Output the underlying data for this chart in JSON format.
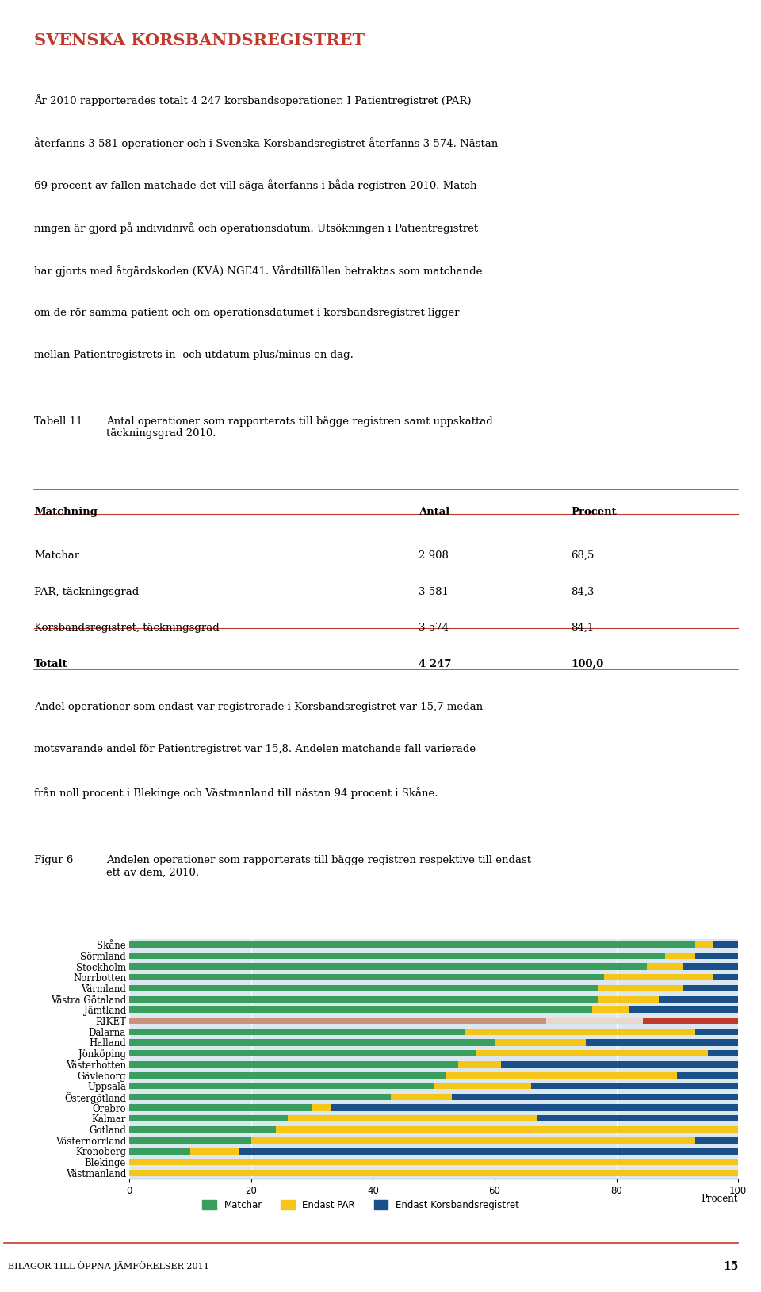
{
  "title": "SVENSKA KORSBANDSREGISTRET",
  "title_color": "#c0392b",
  "body_text": [
    "År 2010 rapporterades totalt 4 247 korsbandsoperationer. I Patientregistret (PAR)",
    "återfanns 3 581 operationer och i Svenska Korsbandsregistret återfanns 3 574. Nästan",
    "69 procent av fallen matchade det vill säga återfanns i båda registren 2010. Match-",
    "ningen är gjord på individnivå och operationsdatum. Utsökningen i Patientregistret",
    "har gjorts med åtgärdskoden (KVÅ) NGE41. Vårdtillfällen betraktas som matchande",
    "om de rör samma patient och om operationsdatumet i korsbandsregistret ligger",
    "mellan Patientregistrets in- och utdatum plus/minus en dag."
  ],
  "tabell_label": "Tabell 11",
  "tabell_title": "Antal operationer som rapporterats till bägge registren samt uppskattad\ntäckningsgrad 2010.",
  "table_headers": [
    "Matchning",
    "Antal",
    "Procent"
  ],
  "table_rows": [
    [
      "Matchar",
      "2 908",
      "68,5"
    ],
    [
      "PAR, täckningsgrad",
      "3 581",
      "84,3"
    ],
    [
      "Korsbandsregistret, täckningsgrad",
      "3 574",
      "84,1"
    ],
    [
      "Totalt",
      "4 247",
      "100,0"
    ]
  ],
  "andel_text": [
    "Andel operationer som endast var registrerade i Korsbandsregistret var 15,7 medan",
    "motsvarande andel för Patientregistret var 15,8. Andelen matchande fall varierade",
    "från noll procent i Blekinge och Västmanland till nästan 94 procent i Skåne."
  ],
  "figur_label": "Figur 6",
  "figur_title": "Andelen operationer som rapporterats till bägge registren respektive till endast\nett av dem, 2010.",
  "categories": [
    "Skåne",
    "Sörmland",
    "Stockholm",
    "Norrbotten",
    "Värmland",
    "Västra Götaland",
    "Jämtland",
    "RIKET",
    "Dalarna",
    "Halland",
    "Jönköping",
    "Västerbotten",
    "Gävleborg",
    "Uppsala",
    "Östergötland",
    "Örebro",
    "Kalmar",
    "Gotland",
    "Västernorrland",
    "Kronoberg",
    "Blekinge",
    "Västmanland"
  ],
  "matchar": [
    93,
    88,
    85,
    78,
    77,
    77,
    76,
    68.5,
    55,
    60,
    57,
    54,
    52,
    50,
    43,
    30,
    26,
    24,
    20,
    10,
    0,
    0
  ],
  "endast_par": [
    3,
    5,
    6,
    18,
    14,
    10,
    6,
    15.8,
    38,
    15,
    38,
    7,
    38,
    16,
    10,
    3,
    41,
    76,
    73,
    8,
    100,
    100
  ],
  "endast_kors": [
    4,
    7,
    9,
    4,
    9,
    13,
    18,
    15.7,
    7,
    25,
    5,
    39,
    10,
    34,
    47,
    67,
    33,
    0,
    7,
    82,
    0,
    0
  ],
  "color_matchar": "#3a9e5f",
  "color_par": "#f5c518",
  "color_kors": "#1a4f8a",
  "color_riket_matchar": "#c9927a",
  "color_riket_par": "#e8d8cc",
  "color_riket_kors": "#c0392b",
  "background_color": "#dce8f0",
  "footer_text": "BILAGOR TILL ÖPPNA JÄMFÖRELSER 2011",
  "footer_page": "15"
}
